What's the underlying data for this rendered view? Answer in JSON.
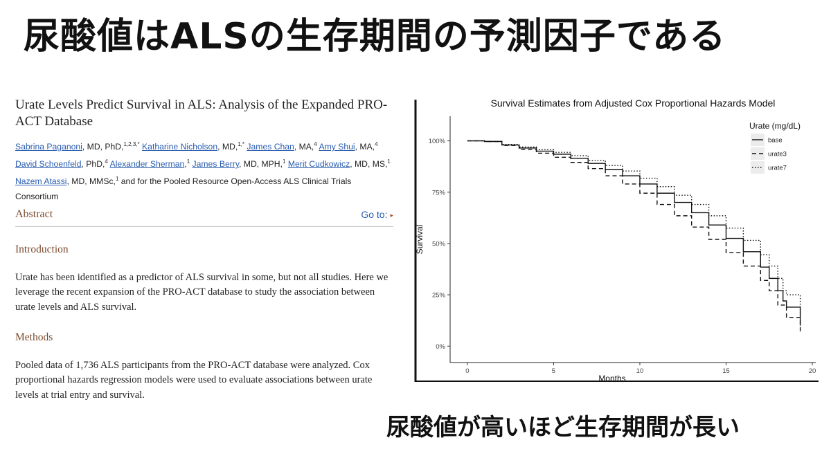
{
  "slide": {
    "title": "尿酸値はALSの生存期間の予測因子である",
    "caption": "尿酸値が高いほど生存期間が長い"
  },
  "paper": {
    "title": "Urate Levels Predict Survival in ALS: Analysis of the Expanded PRO-ACT Database",
    "authors": [
      {
        "name": "Sabrina Paganoni",
        "creds": ", MD, PhD,",
        "sup": "1,2,3,*",
        "sep": " "
      },
      {
        "name": "Katharine Nicholson",
        "creds": ", MD,",
        "sup": "1,*",
        "sep": " "
      },
      {
        "name": "James Chan",
        "creds": ", MA,",
        "sup": "4",
        "sep": " "
      },
      {
        "name": "Amy Shui",
        "creds": ", MA,",
        "sup": "4",
        "sep": " "
      },
      {
        "name": "David Schoenfeld",
        "creds": ", PhD,",
        "sup": "4",
        "sep": " "
      },
      {
        "name": "Alexander Sherman",
        "creds": ",",
        "sup": "1",
        "sep": " "
      },
      {
        "name": "James Berry",
        "creds": ", MD, MPH,",
        "sup": "1",
        "sep": " "
      },
      {
        "name": "Merit Cudkowicz",
        "creds": ", MD, MS,",
        "sup": "1",
        "sep": " "
      },
      {
        "name": "Nazem Atassi",
        "creds": ", MD, MMSc,",
        "sup": "1",
        "sep": " "
      }
    ],
    "consortium": " and for the Pooled Resource Open-Access ALS Clinical Trials Consortium",
    "abstract_label": "Abstract",
    "goto_label": "Go to:",
    "goto_arrow": "▸",
    "intro_heading": "Introduction",
    "intro_text": "Urate has been identified as a predictor of ALS survival in some, but not all studies. Here we leverage the recent expansion of the PRO-ACT database to study the association between urate levels and ALS survival.",
    "methods_heading": "Methods",
    "methods_text": "Pooled data of 1,736 ALS participants from the PRO-ACT database were analyzed. Cox proportional hazards regression models were used to evaluate associations between urate levels at trial entry and survival."
  },
  "chart_data": {
    "type": "line",
    "title": "Survival Estimates from Adjusted Cox Proportional Hazards Model",
    "xlabel": "Months",
    "ylabel": "Survival",
    "xlim": [
      -1,
      20.2
    ],
    "ylim": [
      -0.08,
      1.12
    ],
    "xticks": [
      0,
      5,
      10,
      15,
      20
    ],
    "xtick_labels": [
      "0",
      "5",
      "10",
      "15",
      "20"
    ],
    "yticks": [
      0,
      0.25,
      0.5,
      0.75,
      1.0
    ],
    "ytick_labels": [
      "0%",
      "25%",
      "50%",
      "75%",
      "100%"
    ],
    "grid": false,
    "legend_title": "Urate (mg/dL)",
    "legend_position": "top-right",
    "series": [
      {
        "name": "base",
        "dash": "",
        "points": [
          [
            0,
            1.0
          ],
          [
            1,
            0.997
          ],
          [
            2,
            0.98
          ],
          [
            3,
            0.965
          ],
          [
            4,
            0.95
          ],
          [
            5,
            0.935
          ],
          [
            6,
            0.915
          ],
          [
            7,
            0.89
          ],
          [
            8,
            0.86
          ],
          [
            9,
            0.83
          ],
          [
            10,
            0.79
          ],
          [
            11,
            0.745
          ],
          [
            12,
            0.7
          ],
          [
            13,
            0.65
          ],
          [
            14,
            0.59
          ],
          [
            15,
            0.525
          ],
          [
            16,
            0.46
          ],
          [
            17,
            0.385
          ],
          [
            17.5,
            0.33
          ],
          [
            18,
            0.27
          ],
          [
            18.3,
            0.22
          ],
          [
            18.5,
            0.19
          ],
          [
            19,
            0.19
          ],
          [
            19.3,
            0.19
          ],
          [
            19.3,
            0.1
          ]
        ]
      },
      {
        "name": "urate3",
        "dash": "6,4",
        "points": [
          [
            0,
            1.0
          ],
          [
            1,
            0.997
          ],
          [
            2,
            0.978
          ],
          [
            3,
            0.958
          ],
          [
            4,
            0.94
          ],
          [
            5,
            0.92
          ],
          [
            6,
            0.895
          ],
          [
            7,
            0.865
          ],
          [
            8,
            0.83
          ],
          [
            9,
            0.79
          ],
          [
            10,
            0.745
          ],
          [
            11,
            0.69
          ],
          [
            12,
            0.635
          ],
          [
            13,
            0.58
          ],
          [
            14,
            0.52
          ],
          [
            15,
            0.455
          ],
          [
            16,
            0.39
          ],
          [
            17,
            0.32
          ],
          [
            17.5,
            0.27
          ],
          [
            18,
            0.2
          ],
          [
            18.5,
            0.14
          ],
          [
            19,
            0.14
          ],
          [
            19.3,
            0.14
          ],
          [
            19.3,
            0.07
          ]
        ]
      },
      {
        "name": "urate7",
        "dash": "1.5,2.5",
        "points": [
          [
            0,
            1.0
          ],
          [
            1,
            0.998
          ],
          [
            2,
            0.983
          ],
          [
            3,
            0.97
          ],
          [
            4,
            0.957
          ],
          [
            5,
            0.944
          ],
          [
            6,
            0.928
          ],
          [
            7,
            0.905
          ],
          [
            8,
            0.88
          ],
          [
            9,
            0.853
          ],
          [
            10,
            0.818
          ],
          [
            11,
            0.777
          ],
          [
            12,
            0.735
          ],
          [
            13,
            0.69
          ],
          [
            14,
            0.635
          ],
          [
            15,
            0.575
          ],
          [
            16,
            0.515
          ],
          [
            17,
            0.445
          ],
          [
            17.5,
            0.39
          ],
          [
            18,
            0.33
          ],
          [
            18.3,
            0.27
          ],
          [
            18.5,
            0.25
          ],
          [
            19,
            0.25
          ],
          [
            19.3,
            0.25
          ],
          [
            19.3,
            0.15
          ]
        ]
      }
    ]
  }
}
